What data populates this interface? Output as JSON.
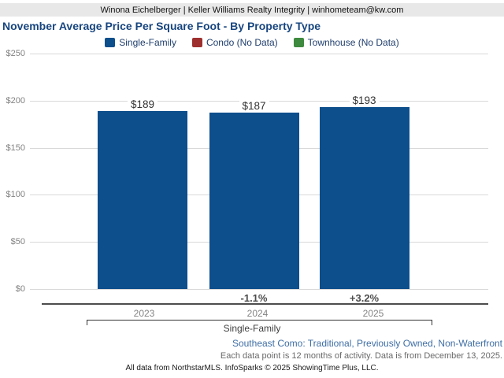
{
  "header": {
    "text": "Winona Eichelberger | Keller Williams Realty Integrity | winhometeam@kw.com"
  },
  "title": "November Average Price Per Square Foot - By Property Type",
  "chart_data": {
    "type": "bar",
    "title": "November Average Price Per Square Foot - By Property Type",
    "categories": [
      "2023",
      "2024",
      "2025"
    ],
    "series": [
      {
        "name": "Single-Family",
        "values": [
          189,
          187,
          193
        ],
        "color": "#0d4e8c"
      },
      {
        "name": "Condo (No Data)",
        "values": [
          null,
          null,
          null
        ],
        "color": "#9e2f2f"
      },
      {
        "name": "Townhouse (No Data)",
        "values": [
          null,
          null,
          null
        ],
        "color": "#3e8a3e"
      }
    ],
    "bar_value_labels": [
      "$189",
      "$187",
      "$193"
    ],
    "pct_change_labels": [
      "",
      "-1.1%",
      "+3.2%"
    ],
    "y_ticks": [
      "$0",
      "$50",
      "$100",
      "$150",
      "$200",
      "$250"
    ],
    "y_tick_values": [
      0,
      50,
      100,
      150,
      200,
      250
    ],
    "ylim": [
      0,
      250
    ],
    "grid": true,
    "legend_position": "top",
    "group_axis_label": "Single-Family"
  },
  "footer": {
    "filters": "Southeast Como: Traditional, Previously Owned, Non-Waterfront",
    "data_note": "Each data point is 12 months of activity. Data is from December 13, 2025.",
    "attribution": "All data from NorthstarMLS. InfoSparks © 2025 ShowingTime Plus, LLC."
  },
  "colors": {
    "bar_blue": "#0d4e8c",
    "condo_red": "#9e2f2f",
    "townhouse_green": "#3e8a3e",
    "title_blue": "#17457f",
    "legend_text_blue": "#1f3e6d",
    "filters_link_blue": "#3e6ea5",
    "gridline_gray": "#d9d9d9",
    "header_bg": "#e8e8e8"
  }
}
